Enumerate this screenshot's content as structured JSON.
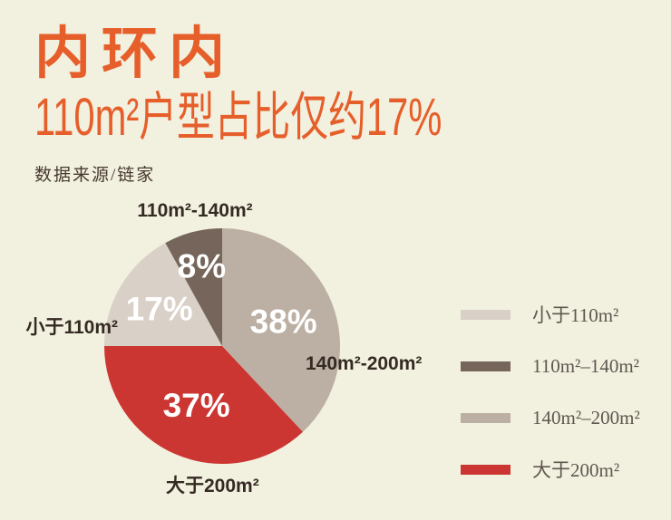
{
  "page": {
    "background_color": "#f2f0df",
    "accent_color": "#e65f2b"
  },
  "header": {
    "title": "内环内",
    "subtitle": "110m²户型占比仅约17%",
    "source": "数据来源/链家"
  },
  "chart_data": {
    "type": "pie",
    "title": "内环内110m²户型占比仅约17%",
    "unit": "%",
    "start_angle": "12-oclock",
    "direction": "clockwise",
    "legend_position": "right",
    "slices": [
      {
        "label": "140m²-200m²",
        "value": 38,
        "color": "#bcafa3",
        "label_r": 0.56
      },
      {
        "label": "大于200m²",
        "value": 37,
        "color": "#cc3632",
        "label_r": 0.55
      },
      {
        "label": "小于110m²",
        "value": 17,
        "color": "#d9d0c7",
        "label_r": 0.62
      },
      {
        "label": "110m²-140m²",
        "value": 8,
        "color": "#75655a",
        "label_r": 0.7
      }
    ]
  },
  "callouts": {
    "top": "110m²-140m²",
    "left": "小于110m²",
    "right": "140m²-200m²",
    "bottom": "大于200m²"
  },
  "legend": {
    "items": [
      {
        "label": "小于110m²",
        "color": "#d9d0c7"
      },
      {
        "label": "110m²–140m²",
        "color": "#75655a"
      },
      {
        "label": "140m²–200m²",
        "color": "#bcafa3"
      },
      {
        "label": "大于200m²",
        "color": "#cc3632"
      }
    ]
  }
}
